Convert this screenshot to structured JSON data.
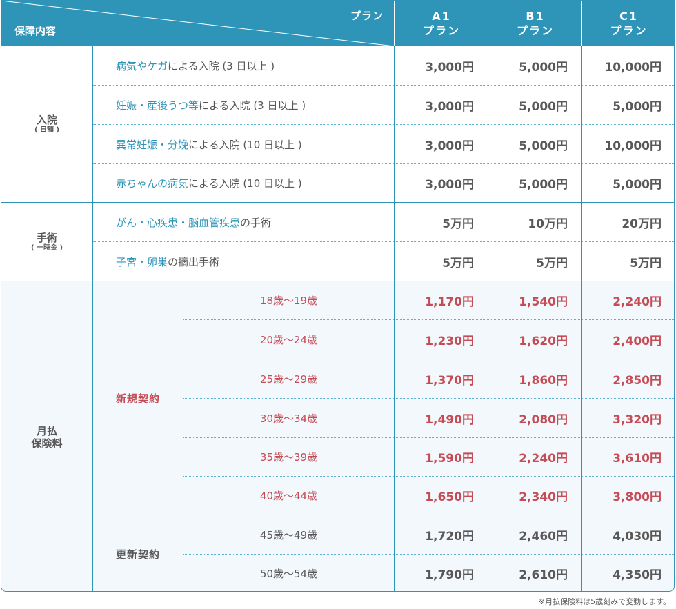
{
  "header": {
    "coverage_label": "保障内容",
    "plan_label": "プラン",
    "plans": [
      {
        "code": "A1",
        "suffix": "プラン"
      },
      {
        "code": "B1",
        "suffix": "プラン"
      },
      {
        "code": "C1",
        "suffix": "プラン"
      }
    ]
  },
  "hospitalization": {
    "title": "入院",
    "subtitle": "( 日額 )",
    "rows": [
      {
        "highlight": "病気やケガ",
        "rest": "による入院 (3 日以上 )",
        "prices": [
          "3,000円",
          "5,000円",
          "10,000円"
        ]
      },
      {
        "highlight": "妊娠・産後うつ等",
        "rest": "による入院 (3 日以上 )",
        "prices": [
          "3,000円",
          "5,000円",
          "5,000円"
        ]
      },
      {
        "highlight": "異常妊娠・分娩",
        "rest": "による入院 (10 日以上 )",
        "prices": [
          "3,000円",
          "5,000円",
          "10,000円"
        ]
      },
      {
        "highlight": "赤ちゃんの病気",
        "rest": "による入院 (10 日以上 )",
        "prices": [
          "3,000円",
          "5,000円",
          "5,000円"
        ]
      }
    ]
  },
  "surgery": {
    "title": "手術",
    "subtitle": "( 一時金 )",
    "rows": [
      {
        "highlight": "がん・心疾患・脳血管疾患",
        "rest": "の手術",
        "prices": [
          "5万円",
          "10万円",
          "20万円"
        ]
      },
      {
        "highlight": "子宮・卵巣",
        "rest": "の摘出手術",
        "prices": [
          "5万円",
          "5万円",
          "5万円"
        ]
      }
    ]
  },
  "premium": {
    "title_line1": "月払",
    "title_line2": "保険料",
    "new_contract": {
      "label": "新規契約",
      "rows": [
        {
          "age": "18歳～19歳",
          "prices": [
            "1,170円",
            "1,540円",
            "2,240円"
          ]
        },
        {
          "age": "20歳～24歳",
          "prices": [
            "1,230円",
            "1,620円",
            "2,400円"
          ]
        },
        {
          "age": "25歳～29歳",
          "prices": [
            "1,370円",
            "1,860円",
            "2,850円"
          ]
        },
        {
          "age": "30歳～34歳",
          "prices": [
            "1,490円",
            "2,080円",
            "3,320円"
          ]
        },
        {
          "age": "35歳～39歳",
          "prices": [
            "1,590円",
            "2,240円",
            "3,610円"
          ]
        },
        {
          "age": "40歳～44歳",
          "prices": [
            "1,650円",
            "2,340円",
            "3,800円"
          ]
        }
      ]
    },
    "renewal_contract": {
      "label": "更新契約",
      "rows": [
        {
          "age": "45歳～49歳",
          "prices": [
            "1,720円",
            "2,460円",
            "4,030円"
          ]
        },
        {
          "age": "50歳～54歳",
          "prices": [
            "1,790円",
            "2,610円",
            "4,350円"
          ]
        }
      ]
    }
  },
  "footnote": "※月払保険料は5歳刻みで変動します。",
  "colors": {
    "accent": "#2e95b8",
    "premium_new": "#c54b55",
    "text": "#595757",
    "premium_bg": "#f3f8fc"
  }
}
